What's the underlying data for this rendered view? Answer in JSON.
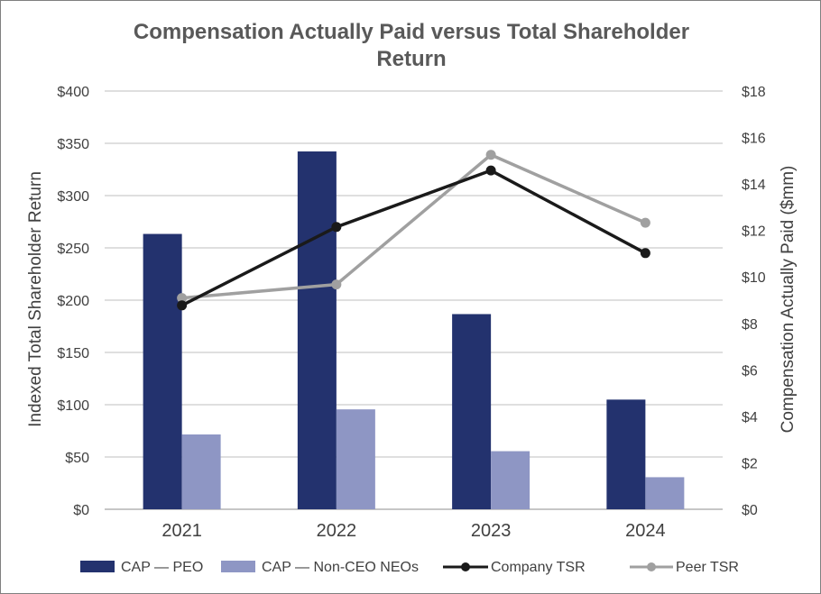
{
  "chart_data": {
    "type": "bar+line",
    "title_line1": "Compensation Actually Paid versus Total Shareholder",
    "title_line2": "Return",
    "categories": [
      "2021",
      "2022",
      "2023",
      "2024"
    ],
    "left_axis": {
      "label": "Indexed Total Shareholder Return",
      "range": [
        0,
        400
      ],
      "ticks": [
        0,
        50,
        100,
        150,
        200,
        250,
        300,
        350,
        400
      ],
      "tick_labels": [
        "$0",
        "$50",
        "$100",
        "$150",
        "$200",
        "$250",
        "$300",
        "$350",
        "$400"
      ]
    },
    "right_axis": {
      "label": "Compensation Actually Paid ($mm)",
      "range": [
        0,
        18
      ],
      "ticks": [
        0,
        2,
        4,
        6,
        8,
        10,
        12,
        14,
        16,
        18
      ],
      "tick_labels": [
        "$0",
        "$2",
        "$4",
        "$6",
        "$8",
        "$10",
        "$12",
        "$14",
        "$16",
        "$18"
      ]
    },
    "series": [
      {
        "name": "CAP — PEO",
        "type": "bar",
        "axis": "right",
        "color": "#23326e",
        "values": [
          11.85,
          15.4,
          8.4,
          4.72
        ]
      },
      {
        "name": "CAP — Non-CEO NEOs",
        "type": "bar",
        "axis": "right",
        "color": "#8e96c4",
        "values": [
          3.22,
          4.3,
          2.5,
          1.38
        ]
      },
      {
        "name": "Company TSR",
        "type": "line",
        "axis": "left",
        "color": "#1a1a1a",
        "values": [
          195,
          270,
          324,
          245
        ]
      },
      {
        "name": "Peer TSR",
        "type": "line",
        "axis": "left",
        "color": "#a0a0a0",
        "values": [
          202,
          215,
          339,
          274
        ]
      }
    ],
    "grid": true,
    "legend_position": "bottom"
  }
}
